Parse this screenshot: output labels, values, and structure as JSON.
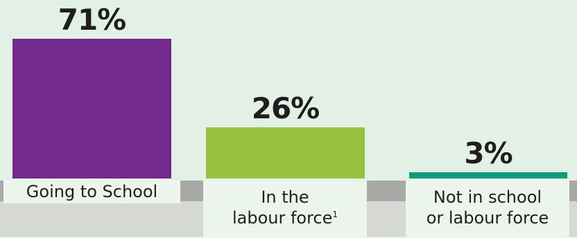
{
  "chart_data": {
    "type": "bar",
    "categories": [
      "Going to School",
      "In the labour force",
      "Not in school or labour force"
    ],
    "values": [
      71,
      26,
      3
    ],
    "value_labels": [
      "71%",
      "26%",
      "3%"
    ],
    "label_lines": [
      {
        "lines": [
          "Going to School"
        ]
      },
      {
        "lines": [
          "In the",
          "labour force"
        ],
        "footnote_mark": "1"
      },
      {
        "lines": [
          "Not in school",
          "or labour force"
        ]
      }
    ],
    "colors": [
      "#74298d",
      "#96c23d",
      "#0f9a80"
    ],
    "ylim": [
      0,
      71
    ],
    "grid": false,
    "legend": "none",
    "title": "",
    "xlabel": "",
    "ylabel": ""
  }
}
